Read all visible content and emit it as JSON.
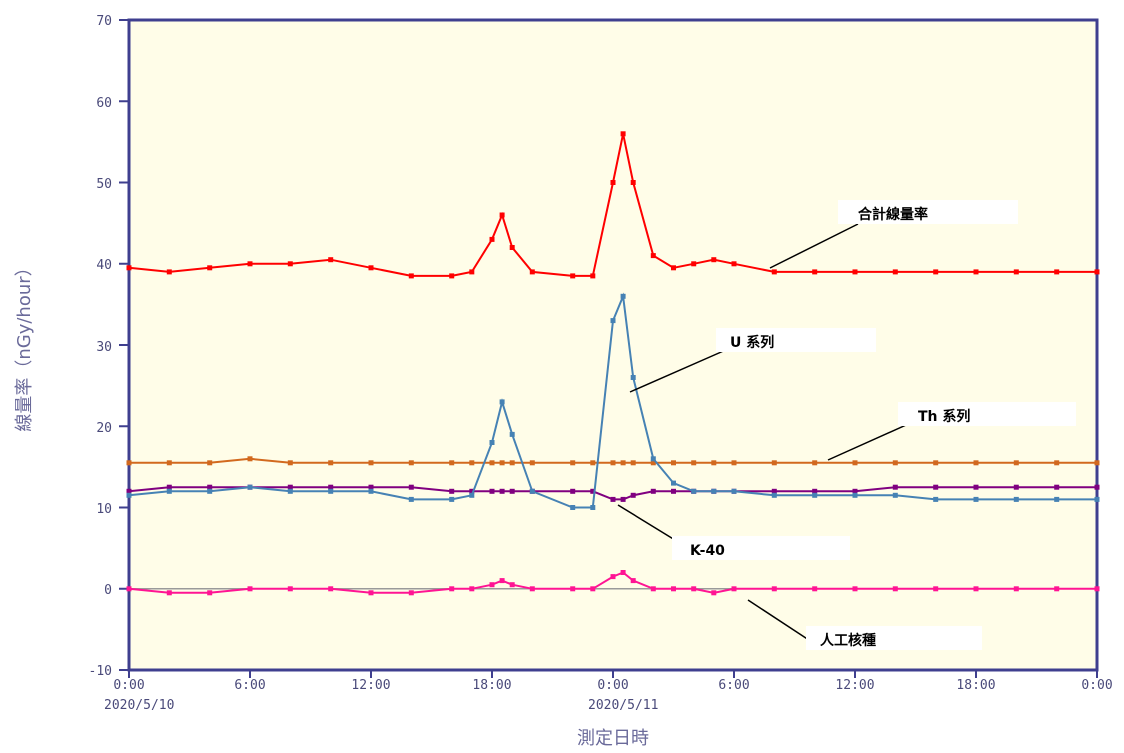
{
  "chart_data": {
    "type": "line",
    "ylabel": "線量率（nGy/hour）",
    "xlabel": "測定日時",
    "ylim": [
      -10,
      70
    ],
    "y_ticks": [
      "70",
      "60",
      "50",
      "40",
      "30",
      "20",
      "10",
      "0",
      "-10"
    ],
    "x_ticks": [
      "0:00",
      "6:00",
      "12:00",
      "18:00",
      "0:00",
      "6:00",
      "12:00",
      "18:00",
      "0:00"
    ],
    "x_date_labels": [
      "2020/5/10",
      "2020/5/11"
    ],
    "xlim": [
      "2020-05-10T00:00",
      "2020-05-12T00:00"
    ],
    "x": [
      "2020-05-10T00:00",
      "2020-05-10T02:00",
      "2020-05-10T04:00",
      "2020-05-10T06:00",
      "2020-05-10T08:00",
      "2020-05-10T10:00",
      "2020-05-10T12:00",
      "2020-05-10T14:00",
      "2020-05-10T16:00",
      "2020-05-10T17:00",
      "2020-05-10T18:00",
      "2020-05-10T18:30",
      "2020-05-10T19:00",
      "2020-05-10T20:00",
      "2020-05-10T22:00",
      "2020-05-10T23:00",
      "2020-05-11T00:00",
      "2020-05-11T00:30",
      "2020-05-11T01:00",
      "2020-05-11T02:00",
      "2020-05-11T03:00",
      "2020-05-11T04:00",
      "2020-05-11T05:00",
      "2020-05-11T06:00",
      "2020-05-11T08:00",
      "2020-05-11T10:00",
      "2020-05-11T12:00",
      "2020-05-11T14:00",
      "2020-05-11T16:00",
      "2020-05-11T18:00",
      "2020-05-11T20:00",
      "2020-05-11T22:00",
      "2020-05-12T00:00"
    ],
    "series": [
      {
        "name": "合計線量率",
        "color": "#ff0000",
        "values": [
          39.5,
          39,
          39.5,
          40,
          40,
          40.5,
          39.5,
          38.5,
          38.5,
          39,
          43,
          46,
          42,
          39,
          38.5,
          38.5,
          50,
          56,
          50,
          41,
          39.5,
          40,
          40.5,
          40,
          39,
          39,
          39,
          39,
          39,
          39,
          39,
          39,
          39
        ]
      },
      {
        "name": "U 系列",
        "color": "#4682b4",
        "values": [
          11.5,
          12,
          12,
          12.5,
          12,
          12,
          12,
          11,
          11,
          11.5,
          18,
          23,
          19,
          12,
          10,
          10,
          33,
          36,
          26,
          16,
          13,
          12,
          12,
          12,
          11.5,
          11.5,
          11.5,
          11.5,
          11,
          11,
          11,
          11,
          11
        ]
      },
      {
        "name": "Th 系列",
        "color": "#d2691e",
        "values": [
          15.5,
          15.5,
          15.5,
          16,
          15.5,
          15.5,
          15.5,
          15.5,
          15.5,
          15.5,
          15.5,
          15.5,
          15.5,
          15.5,
          15.5,
          15.5,
          15.5,
          15.5,
          15.5,
          15.5,
          15.5,
          15.5,
          15.5,
          15.5,
          15.5,
          15.5,
          15.5,
          15.5,
          15.5,
          15.5,
          15.5,
          15.5,
          15.5
        ]
      },
      {
        "name": "K-40",
        "color": "#800080",
        "values": [
          12,
          12.5,
          12.5,
          12.5,
          12.5,
          12.5,
          12.5,
          12.5,
          12,
          12,
          12,
          12,
          12,
          12,
          12,
          12,
          11,
          11,
          11.5,
          12,
          12,
          12,
          12,
          12,
          12,
          12,
          12,
          12.5,
          12.5,
          12.5,
          12.5,
          12.5,
          12.5
        ]
      },
      {
        "name": "人工核種",
        "color": "#ff1493",
        "values": [
          0,
          -0.5,
          -0.5,
          0,
          0,
          0,
          -0.5,
          -0.5,
          0,
          0,
          0.5,
          1,
          0.5,
          0,
          0,
          0,
          1.5,
          2,
          1,
          0,
          0,
          0,
          -0.5,
          0,
          0,
          0,
          0,
          0,
          0,
          0,
          0,
          0,
          0
        ]
      }
    ]
  },
  "colors": {
    "plot_background": "#fffde8",
    "axis": "#3f3f8f",
    "zero_line": "#9a9a9a"
  }
}
